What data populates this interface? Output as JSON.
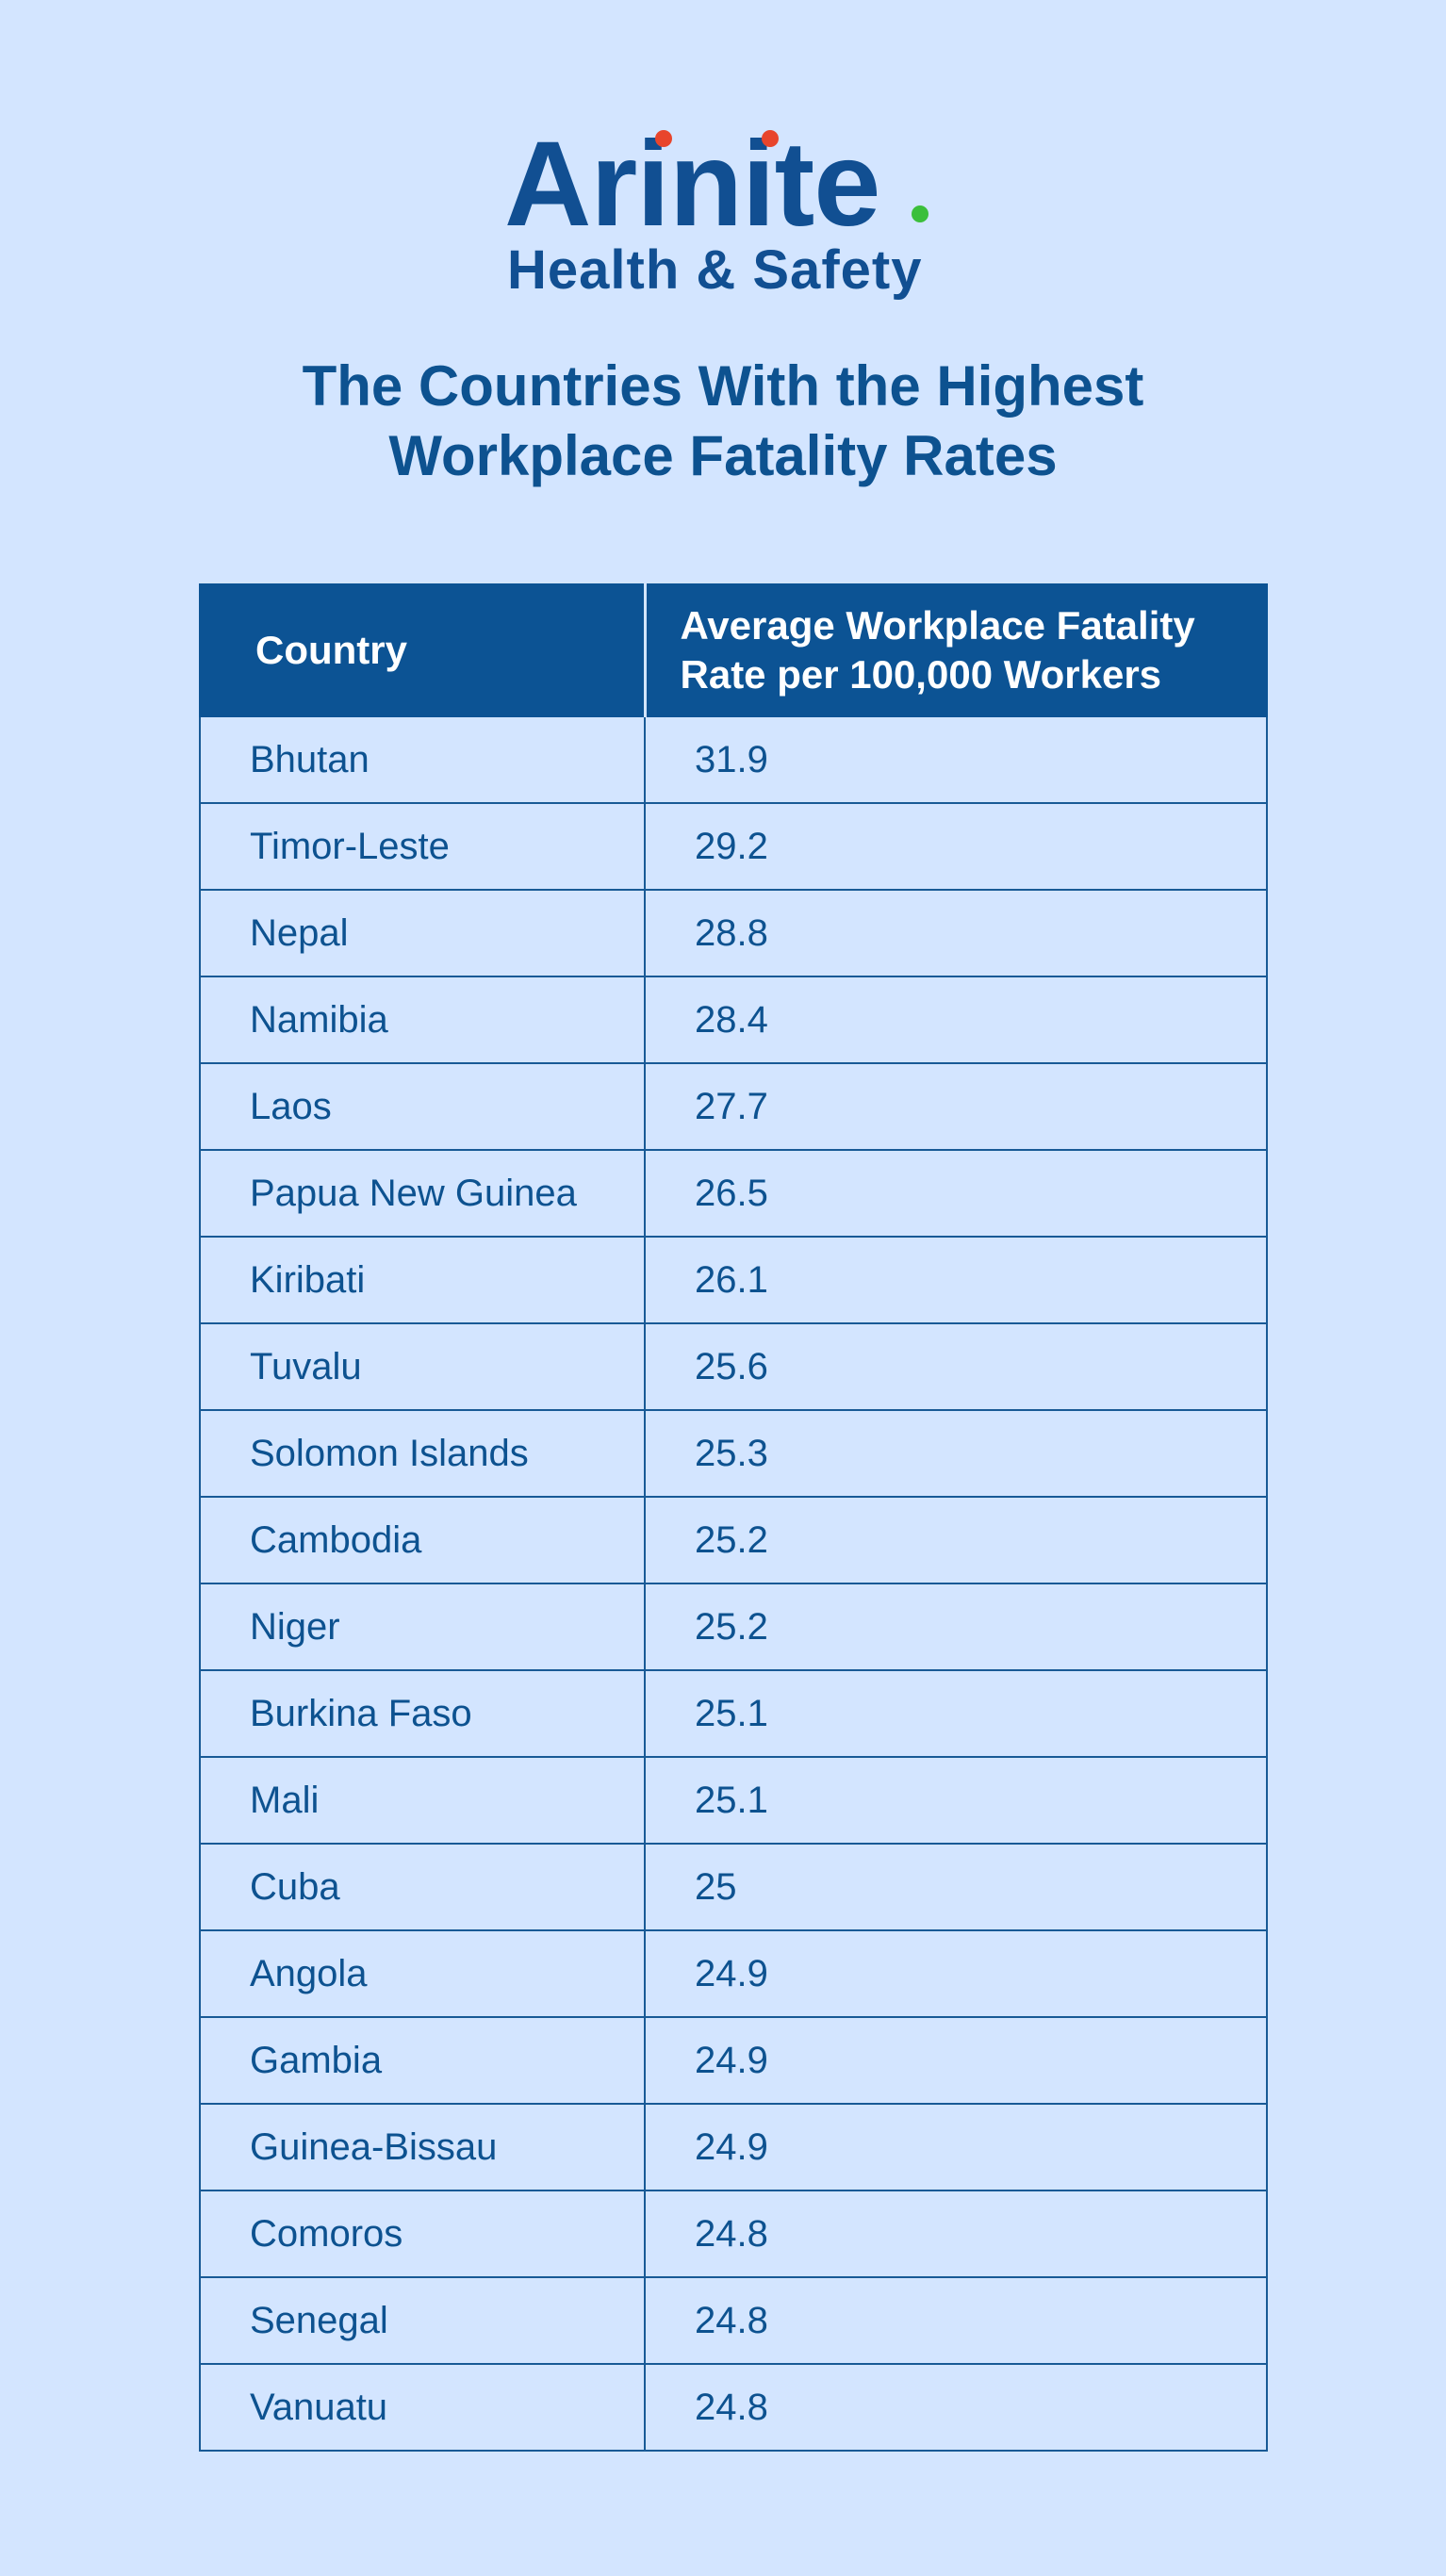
{
  "logo": {
    "word": "Arinite",
    "period": ".",
    "subtitle": "Health & Safety",
    "colors": {
      "text": "#114f92",
      "dots": "#e8452c",
      "period": "#3bbf3b"
    }
  },
  "title": {
    "line1": "The Countries With the Highest",
    "line2": "Workplace Fatality Rates"
  },
  "chart_data": {
    "type": "table",
    "columns": [
      "Country",
      "Average Workplace Fatality Rate per 100,000 Workers"
    ],
    "column_header_lines": [
      [
        "Country"
      ],
      [
        "Average Workplace Fatality",
        "Rate per 100,000 Workers"
      ]
    ],
    "rows": [
      [
        "Bhutan",
        "31.9"
      ],
      [
        "Timor-Leste",
        "29.2"
      ],
      [
        "Nepal",
        "28.8"
      ],
      [
        "Namibia",
        "28.4"
      ],
      [
        "Laos",
        "27.7"
      ],
      [
        "Papua New Guinea",
        "26.5"
      ],
      [
        "Kiribati",
        "26.1"
      ],
      [
        "Tuvalu",
        "25.6"
      ],
      [
        "Solomon Islands",
        "25.3"
      ],
      [
        "Cambodia",
        "25.2"
      ],
      [
        "Niger",
        "25.2"
      ],
      [
        "Burkina Faso",
        "25.1"
      ],
      [
        "Mali",
        "25.1"
      ],
      [
        "Cuba",
        "25"
      ],
      [
        "Angola",
        "24.9"
      ],
      [
        "Gambia",
        "24.9"
      ],
      [
        "Guinea-Bissau",
        "24.9"
      ],
      [
        "Comoros",
        "24.8"
      ],
      [
        "Senegal",
        "24.8"
      ],
      [
        "Vanuatu",
        "24.8"
      ]
    ],
    "colors": {
      "background": "#d3e5ff",
      "header": "#0c5394",
      "text": "#0d5290",
      "border": "#185a96"
    }
  }
}
